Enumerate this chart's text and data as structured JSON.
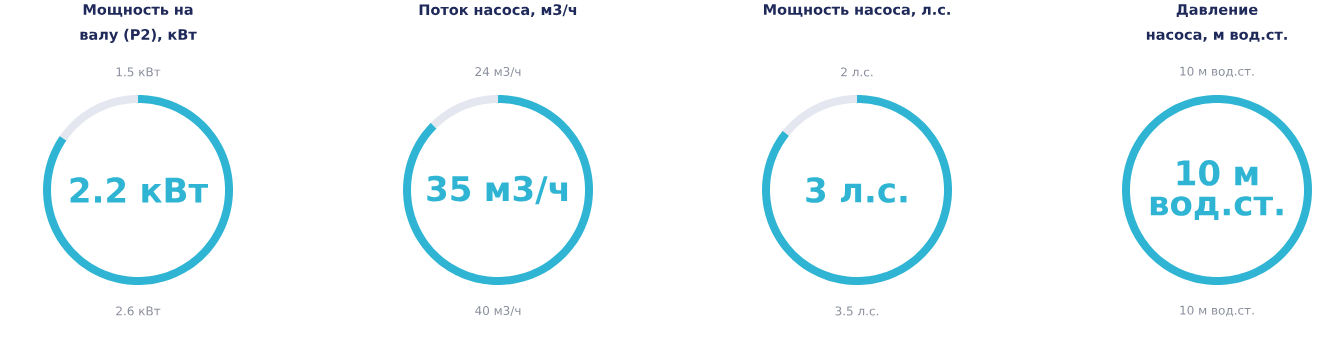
{
  "chart_data": [
    {
      "type": "donut",
      "title": "Мощность на валу (P2), кВт",
      "categories": [
        null,
        null
      ],
      "values": [
        2.2,
        0.4
      ],
      "colors": [
        "#2fb5d3",
        "#e4e7f0"
      ],
      "value_labels": [
        "2.2 кВт",
        null
      ],
      "annotations": [
        "1.5 кВт",
        "2.6 кВт"
      ]
    },
    {
      "type": "donut",
      "title": "Поток насоса, м3/ч",
      "categories": [
        null,
        null
      ],
      "values": [
        35,
        5
      ],
      "colors": [
        "#2fb5d3",
        "#e4e7f0"
      ],
      "value_labels": [
        "35 м3/ч",
        null
      ],
      "annotations": [
        "24 м3/ч",
        "40 м3/ч"
      ]
    },
    {
      "type": "donut",
      "title": "Мощность насоса, л.с.",
      "categories": [
        null,
        null
      ],
      "values": [
        3,
        0.5
      ],
      "colors": [
        "#2fb5d3",
        "#e4e7f0"
      ],
      "value_labels": [
        "3 л.с.",
        null
      ],
      "annotations": [
        "2 л.с.",
        "3.5 л.с."
      ]
    },
    {
      "type": "donut",
      "title": "Давление насоса, м вод.ст.",
      "categories": [
        null,
        null
      ],
      "values": [
        10,
        0
      ],
      "colors": [
        "#2fb5d3",
        "#e4e7f0"
      ],
      "value_labels": [
        "10 м вод.ст.",
        null
      ],
      "annotations": [
        "10 м вод.ст.",
        "10 м вод.ст."
      ]
    }
  ]
}
